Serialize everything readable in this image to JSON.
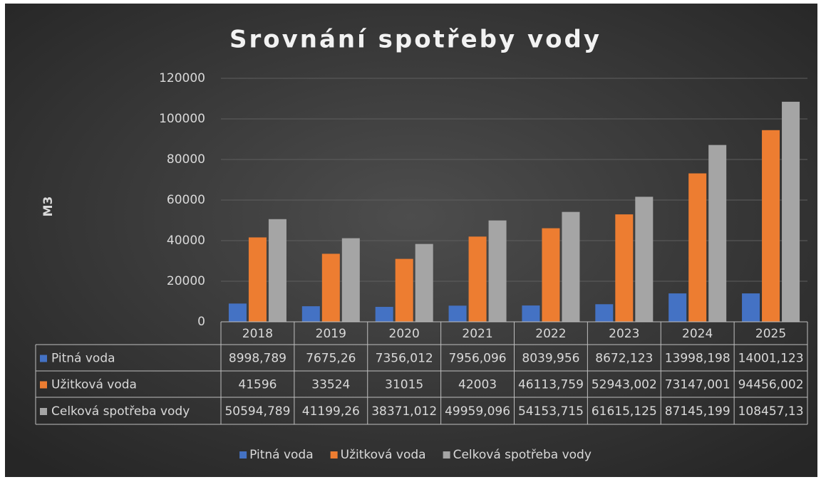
{
  "chart_data": {
    "type": "bar",
    "title": "Srovnání spotřeby vody",
    "y_label": "M3",
    "categories": [
      "2018",
      "2019",
      "2020",
      "2021",
      "2022",
      "2023",
      "2024",
      "2025"
    ],
    "series": [
      {
        "name": "Pitná voda",
        "color": "#4472c4",
        "values": [
          8998.789,
          7675.26,
          7356.012,
          7956.096,
          8039.956,
          8672.123,
          13998.198,
          14001.123
        ],
        "value_labels": [
          "8998,789",
          "7675,26",
          "7356,012",
          "7956,096",
          "8039,956",
          "8672,123",
          "13998,198",
          "14001,123"
        ]
      },
      {
        "name": "Užitková voda",
        "color": "#ed7d31",
        "values": [
          41596,
          33524,
          31015,
          42003,
          46113.759,
          52943.002,
          73147.001,
          94456.002
        ],
        "value_labels": [
          "41596",
          "33524",
          "31015",
          "42003",
          "46113,759",
          "52943,002",
          "73147,001",
          "94456,002"
        ]
      },
      {
        "name": "Celková spotřeba vody",
        "color": "#a5a5a5",
        "values": [
          50594.789,
          41199.26,
          38371.012,
          49959.096,
          54153.715,
          61615.125,
          87145.199,
          108457.13
        ],
        "value_labels": [
          "50594,789",
          "41199,26",
          "38371,012",
          "49959,096",
          "54153,715",
          "61615,125",
          "87145,199",
          "108457,13"
        ]
      }
    ],
    "ylim": [
      0,
      120000
    ],
    "yticks": [
      0,
      20000,
      40000,
      60000,
      80000,
      100000,
      120000
    ],
    "grid": true
  }
}
